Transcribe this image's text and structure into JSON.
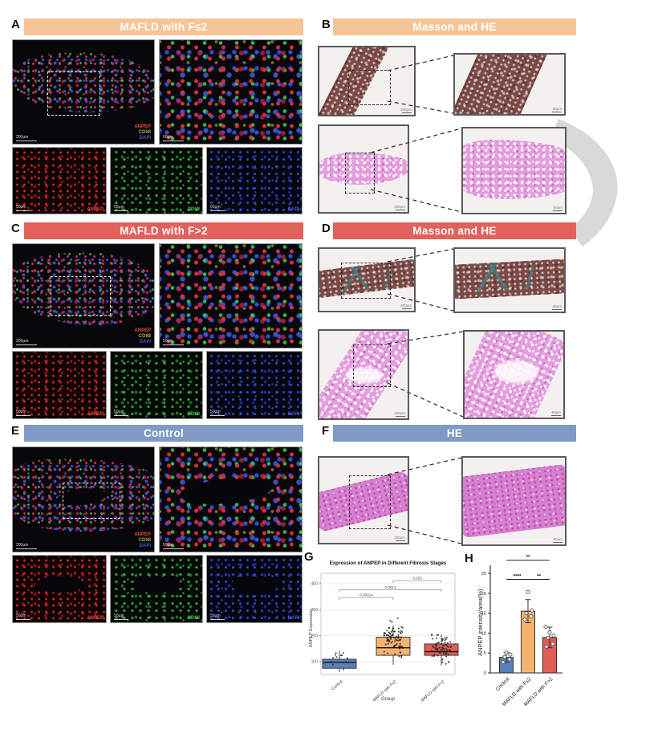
{
  "panels": {
    "a": {
      "letter": "A",
      "header": "MAFLD with F≤2"
    },
    "b": {
      "letter": "B",
      "header": "Masson and HE"
    },
    "c": {
      "letter": "C",
      "header": "MAFLD with F>2"
    },
    "d": {
      "letter": "D",
      "header": "Masson and HE"
    },
    "e": {
      "letter": "E",
      "header": "Control"
    },
    "f": {
      "letter": "F",
      "header": "HE"
    },
    "g": {
      "letter": "G"
    },
    "h": {
      "letter": "H"
    }
  },
  "stains": {
    "anpep": "ANPEP",
    "cd68": "CD68",
    "dapi": "DAPI"
  },
  "scales": {
    "main": "200μm",
    "zoom": "50μm"
  },
  "theme": {
    "peach": "#f6c596",
    "salmon": "#e2625b",
    "steel": "#7f9ac4",
    "swoosh": "#d9d9d9"
  },
  "chart_data": [
    {
      "type": "box",
      "title": "Expression of ANPEP in Different Fibrosis Stages",
      "xlabel": "Group",
      "ylabel": "ANPEP Expression",
      "categories": [
        "Control",
        "MAFLD with F≤2",
        "MAFLD with F>2"
      ],
      "colors": [
        "#5c7fb5",
        "#f5b26f",
        "#de5e56"
      ],
      "ylim": [
        50,
        440
      ],
      "yticks": [
        100,
        200,
        300,
        400
      ],
      "grid": true,
      "legend": false,
      "boxes": [
        {
          "lo": 59,
          "q1": 74,
          "median": 97,
          "q3": 109,
          "hi": 141,
          "points_min": 55,
          "points_max": 180,
          "n": 12
        },
        {
          "lo": 88,
          "q1": 124,
          "median": 153,
          "q3": 194,
          "hi": 238,
          "points_min": 85,
          "points_max": 285,
          "n": 95
        },
        {
          "lo": 85,
          "q1": 124,
          "median": 138,
          "q3": 168,
          "hi": 205,
          "points_min": 80,
          "points_max": 235,
          "n": 70
        }
      ],
      "significance": [
        {
          "from": 0,
          "to": 1,
          "y": 347,
          "label": "0.00014"
        },
        {
          "from": 0,
          "to": 2,
          "y": 377,
          "label": "0.0021"
        },
        {
          "from": 1,
          "to": 2,
          "y": 412,
          "label": "0.025"
        }
      ]
    },
    {
      "type": "bar",
      "ylabel": "ANPEP intensity/area(%)",
      "categories": [
        "Control",
        "MAFLD with F≤2",
        "MAFLD with F>2"
      ],
      "colors": [
        "#5c7fb5",
        "#f5b26f",
        "#de5e56"
      ],
      "values": [
        3.9,
        15.5,
        8.9
      ],
      "errors": [
        1.2,
        2.9,
        2.6
      ],
      "points": [
        [
          2.7,
          3.4,
          4.0,
          4.6,
          5.1
        ],
        [
          13.4,
          14.2,
          15.0,
          15.7,
          20.3
        ],
        [
          6.6,
          7.3,
          8.8,
          9.4,
          10.2,
          11.6
        ]
      ],
      "ylim": [
        0,
        25
      ],
      "yticks": [
        0,
        5,
        10,
        15,
        20,
        25
      ],
      "significance": [
        {
          "from": 0,
          "to": 1,
          "y": 23.5,
          "label": "****"
        },
        {
          "from": 1,
          "to": 2,
          "y": 23.5,
          "label": "**"
        },
        {
          "from": 0,
          "to": 2,
          "y": 28.3,
          "label": "**"
        }
      ]
    }
  ]
}
